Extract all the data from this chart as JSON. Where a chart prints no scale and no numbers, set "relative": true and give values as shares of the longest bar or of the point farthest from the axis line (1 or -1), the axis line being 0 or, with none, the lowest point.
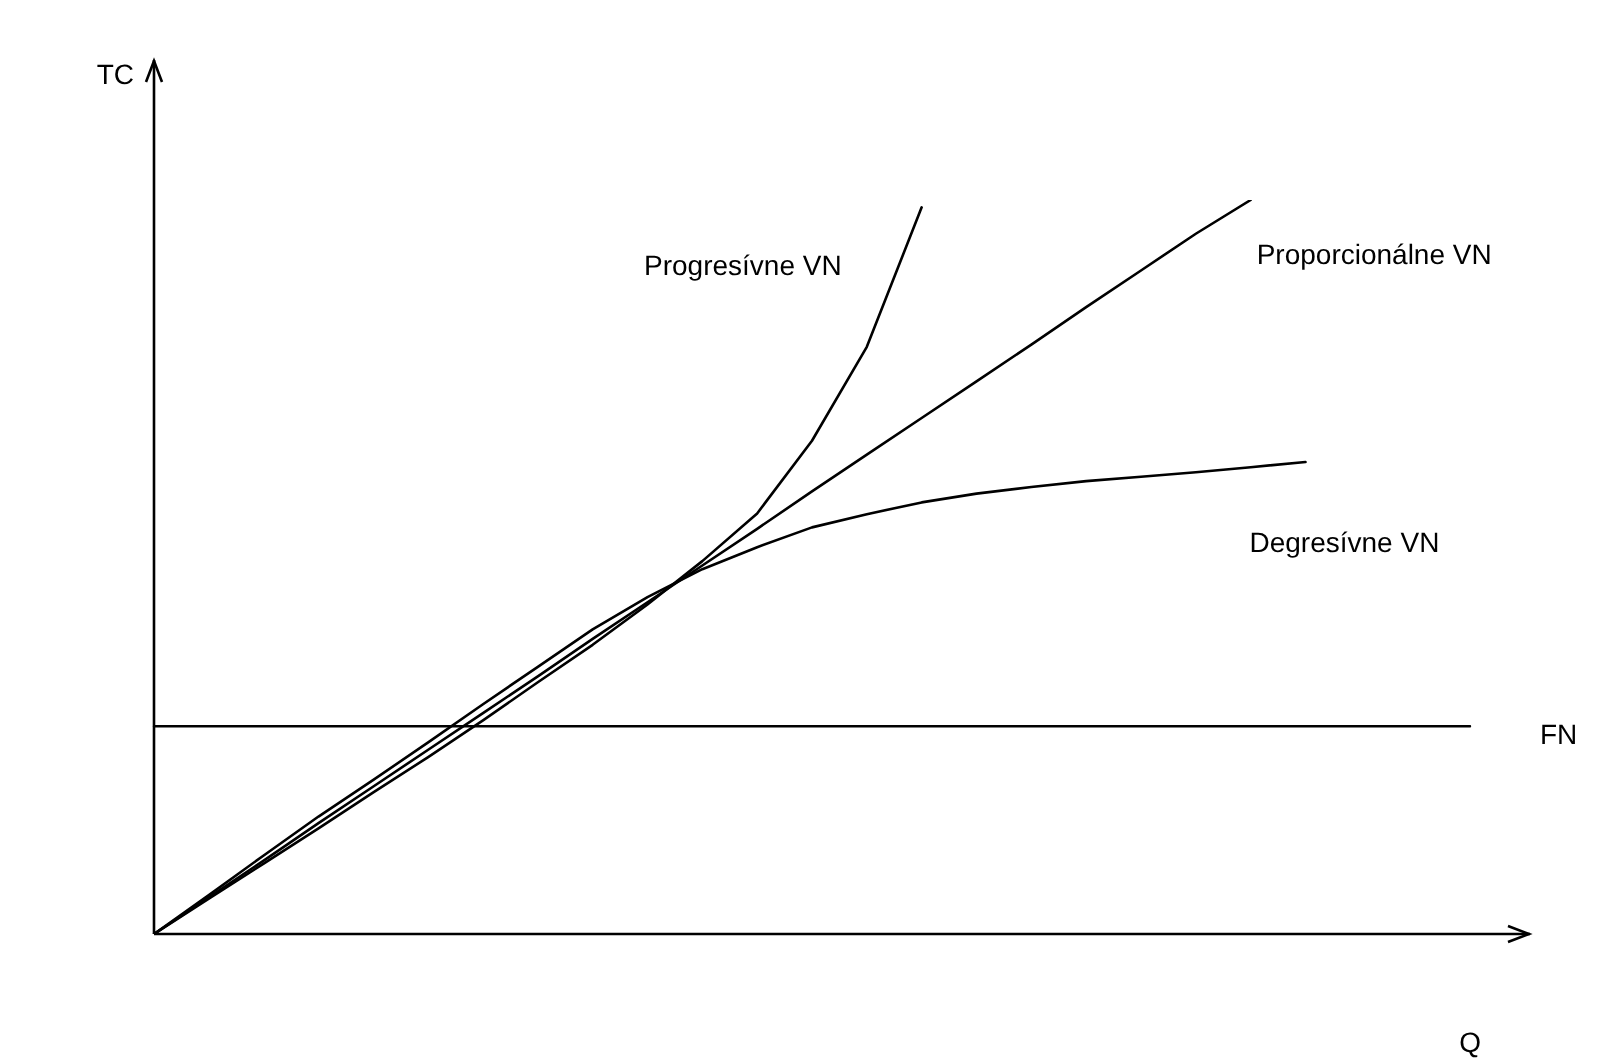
{
  "chart_data": {
    "type": "line",
    "relative": true,
    "xlabel": "Q",
    "ylabel": "TC",
    "legend": false,
    "marker": "none",
    "line_style": "solid",
    "categories": [
      null,
      null,
      null,
      null,
      null,
      null,
      null,
      null,
      null,
      null,
      null,
      null,
      null,
      null,
      null,
      null,
      null,
      null,
      null,
      null,
      null,
      null,
      null,
      null,
      null
    ],
    "series": [
      {
        "name": "Progresívne VN",
        "color": "#000000",
        "values": [
          0,
          0.048,
          0.096,
          0.144,
          0.193,
          0.241,
          0.291,
          0.343,
          0.394,
          0.449,
          0.508,
          0.573,
          0.672,
          0.8,
          0.99,
          null,
          null,
          null,
          null,
          null,
          null,
          null,
          null,
          null,
          null
        ]
      },
      {
        "name": "Proporcionálne VN",
        "color": "#000000",
        "values": [
          0,
          0.05,
          0.1,
          0.151,
          0.201,
          0.251,
          0.301,
          0.351,
          0.402,
          0.452,
          0.502,
          0.552,
          0.603,
          0.653,
          0.703,
          0.753,
          0.803,
          0.854,
          0.904,
          0.954,
          1,
          null,
          null,
          null,
          null
        ]
      },
      {
        "name": "Degresívne VN",
        "color": "#000000",
        "values": [
          0,
          0.053,
          0.107,
          0.16,
          0.21,
          0.261,
          0.313,
          0.364,
          0.415,
          0.459,
          0.497,
          0.527,
          0.554,
          0.572,
          0.588,
          0.6,
          0.609,
          0.617,
          0.623,
          0.629,
          0.636,
          0.643,
          null,
          null,
          null
        ]
      },
      {
        "name": "FN",
        "color": "#000000",
        "values": [
          0.283,
          0.283,
          0.283,
          0.283,
          0.283,
          0.283,
          0.283,
          0.283,
          0.283,
          0.283,
          0.283,
          0.283,
          0.283,
          0.283,
          0.283,
          0.283,
          0.283,
          0.283,
          0.283,
          0.283,
          0.283,
          0.283,
          0.283,
          0.283,
          0.283
        ]
      }
    ]
  }
}
